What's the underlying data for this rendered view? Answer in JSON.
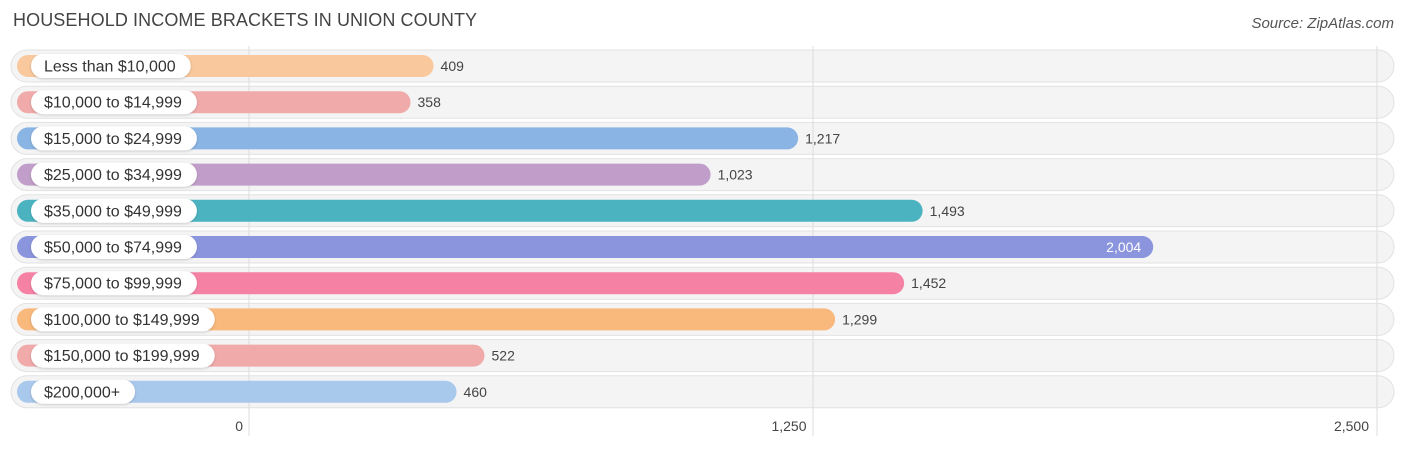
{
  "title": "HOUSEHOLD INCOME BRACKETS IN UNION COUNTY",
  "source": "Source: ZipAtlas.com",
  "chart_data": {
    "type": "bar",
    "orientation": "horizontal",
    "categories": [
      "Less than $10,000",
      "$10,000 to $14,999",
      "$15,000 to $24,999",
      "$25,000 to $34,999",
      "$35,000 to $49,999",
      "$50,000 to $74,999",
      "$75,000 to $99,999",
      "$100,000 to $149,999",
      "$150,000 to $199,999",
      "$200,000+"
    ],
    "values": [
      409,
      358,
      1217,
      1023,
      1493,
      2004,
      1452,
      1299,
      522,
      460
    ],
    "value_labels": [
      "409",
      "358",
      "1,217",
      "1,023",
      "1,493",
      "2,004",
      "1,452",
      "1,299",
      "522",
      "460"
    ],
    "colors": [
      "#f9c89d",
      "#f0aaaa",
      "#8ab4e3",
      "#c19ec9",
      "#4bb3bf",
      "#8b95dd",
      "#f582a5",
      "#f9b87c",
      "#f0aaaa",
      "#a8c8ec"
    ],
    "xlim": [
      0,
      2500
    ],
    "ticks": [
      0,
      1250,
      2500
    ],
    "tick_labels": [
      "0",
      "1,250",
      "2,500"
    ],
    "grid": true
  }
}
